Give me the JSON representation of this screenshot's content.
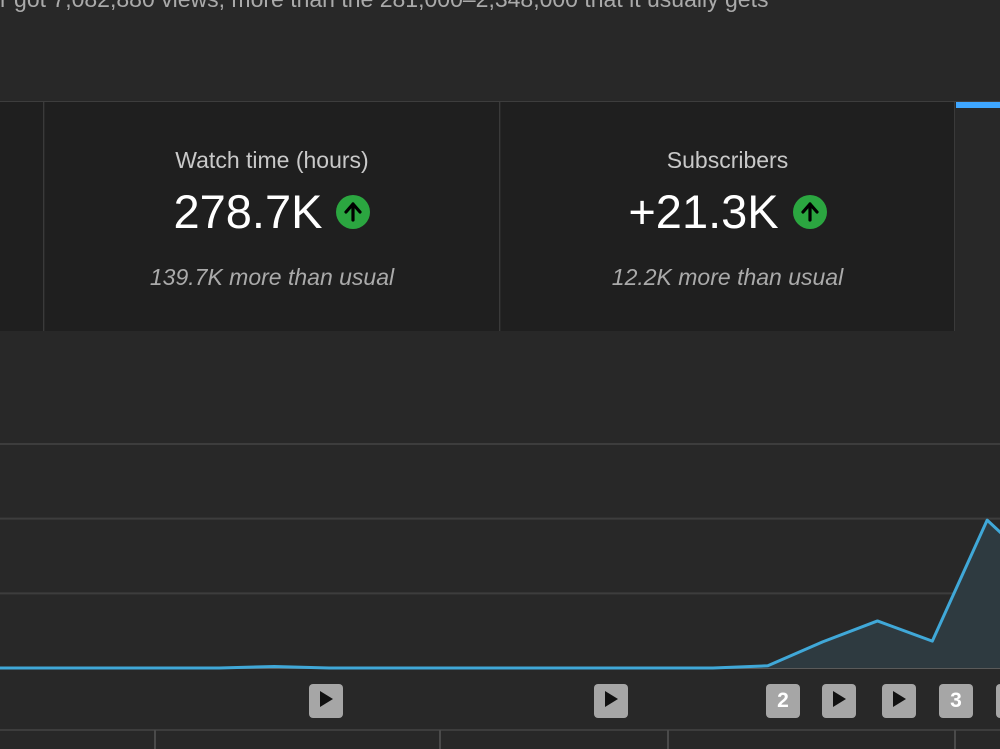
{
  "header": {
    "summary_text": "r got 7,082,880 views, more than the 281,000–2,348,000 that it usually gets"
  },
  "metrics": {
    "watch_time": {
      "label": "Watch time (hours)",
      "value": "278.7K",
      "note": "139.7K more than usual",
      "trend_icon": "arrow-up-icon"
    },
    "subscribers": {
      "label": "Subscribers",
      "value": "+21.3K",
      "note": "12.2K more than usual",
      "trend_icon": "arrow-up-icon"
    }
  },
  "chart_data": {
    "type": "area",
    "series": [
      {
        "values": [
          0,
          0,
          0,
          0,
          0,
          0.2,
          0,
          0,
          0,
          0,
          0,
          0,
          0,
          0,
          0.3,
          3.5,
          6.3,
          3.6,
          19.8,
          13
        ]
      }
    ],
    "ylim": [
      0,
      30
    ],
    "grid": true,
    "line_color": "#40a8d8",
    "fill_color": "#2e3a40",
    "video_markers": [
      {
        "kind": "play",
        "icon": "play-icon",
        "label": ""
      },
      {
        "kind": "play",
        "icon": "play-icon",
        "label": ""
      },
      {
        "kind": "count",
        "icon": "",
        "label": "2"
      },
      {
        "kind": "play",
        "icon": "play-icon",
        "label": ""
      },
      {
        "kind": "play",
        "icon": "play-icon",
        "label": ""
      },
      {
        "kind": "count",
        "icon": "",
        "label": "3"
      }
    ]
  },
  "colors": {
    "background": "#282828",
    "card_background": "#1f1f1f",
    "accent": "#3ea6ff",
    "positive": "#2ba640"
  }
}
